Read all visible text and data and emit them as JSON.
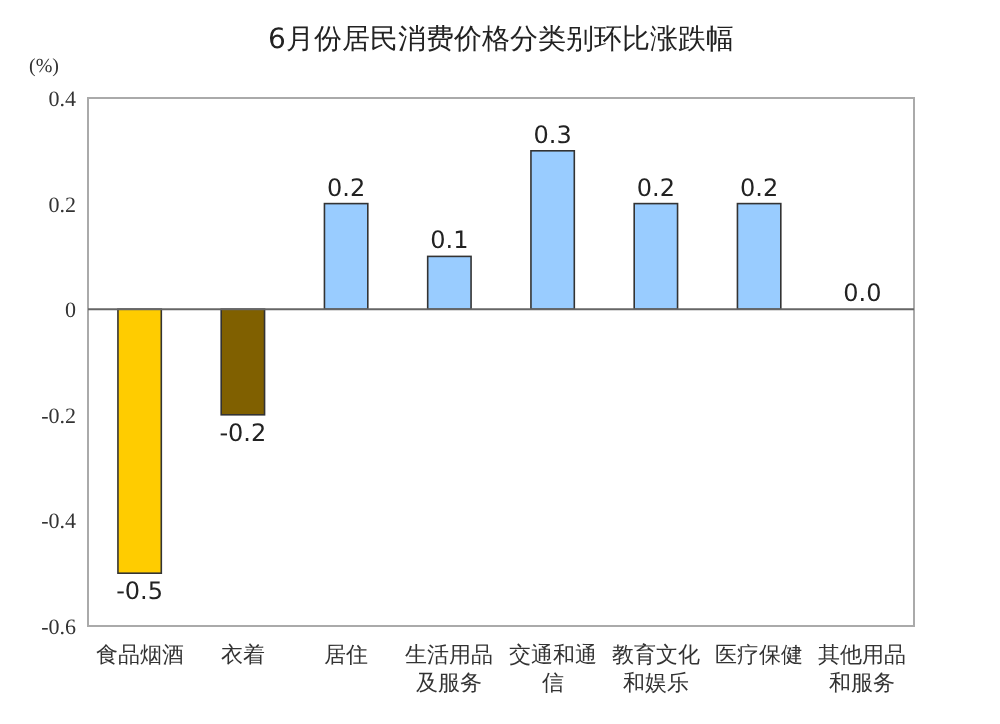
{
  "chart_data": {
    "type": "bar",
    "title": "6月份居民消费价格分类别环比涨跌幅",
    "ylabel": "(%)",
    "categories": [
      "食品烟酒",
      "衣着",
      "居住",
      "生活用品及服务",
      "交通和通信",
      "教育文化和娱乐",
      "医疗保健",
      "其他用品和服务"
    ],
    "values": [
      -0.5,
      -0.2,
      0.2,
      0.1,
      0.3,
      0.2,
      0.2,
      0.0
    ],
    "colors": [
      "#ffcc00",
      "#806000",
      "#99ccff",
      "#99ccff",
      "#99ccff",
      "#99ccff",
      "#99ccff",
      "#99ccff"
    ],
    "value_labels": [
      "-0.5",
      "-0.2",
      "0.2",
      "0.1",
      "0.3",
      "0.2",
      "0.2",
      "0.0"
    ],
    "ylim": [
      -0.6,
      0.4
    ],
    "yticks": [
      -0.6,
      -0.4,
      -0.2,
      0,
      0.2,
      0.4
    ]
  }
}
